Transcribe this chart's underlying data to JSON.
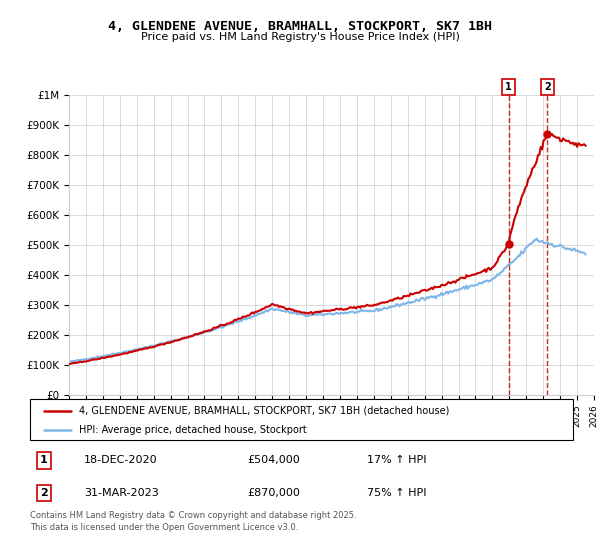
{
  "title": "4, GLENDENE AVENUE, BRAMHALL, STOCKPORT, SK7 1BH",
  "subtitle": "Price paid vs. HM Land Registry's House Price Index (HPI)",
  "legend_line1": "4, GLENDENE AVENUE, BRAMHALL, STOCKPORT, SK7 1BH (detached house)",
  "legend_line2": "HPI: Average price, detached house, Stockport",
  "transaction1_date": "18-DEC-2020",
  "transaction1_price": "£504,000",
  "transaction1_change": "17% ↑ HPI",
  "transaction2_date": "31-MAR-2023",
  "transaction2_price": "£870,000",
  "transaction2_change": "75% ↑ HPI",
  "footer": "Contains HM Land Registry data © Crown copyright and database right 2025.\nThis data is licensed under the Open Government Licence v3.0.",
  "hpi_color": "#7eb6e8",
  "price_color": "#cc0000",
  "marker_color": "#cc0000",
  "dashed_line_color": "#cc0000",
  "ylim": [
    0,
    1000000
  ],
  "yticks": [
    0,
    100000,
    200000,
    300000,
    400000,
    500000,
    600000,
    700000,
    800000,
    900000,
    1000000
  ],
  "ytick_labels": [
    "£0",
    "£100K",
    "£200K",
    "£300K",
    "£400K",
    "£500K",
    "£600K",
    "£700K",
    "£800K",
    "£900K",
    "£1M"
  ],
  "xlim_start": 1995,
  "xlim_end": 2026,
  "transaction1_x": 2020.96,
  "transaction1_y": 504000,
  "transaction2_x": 2023.25,
  "transaction2_y": 870000
}
